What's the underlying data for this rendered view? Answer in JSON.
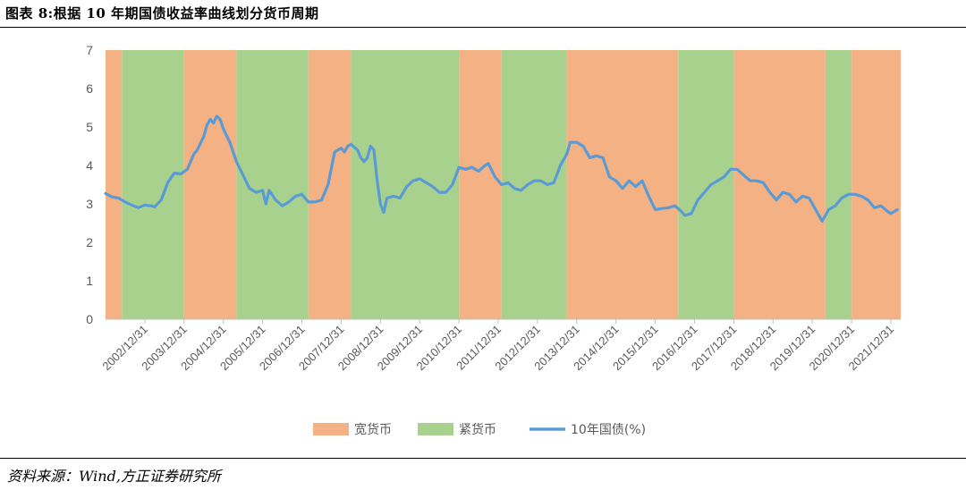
{
  "title": "图表 8:根据 10 年期国债收益率曲线划分货币周期",
  "source": "资料来源：Wind,方正证券研究所",
  "colors": {
    "loose": "#F4B183",
    "tight": "#A9D18E",
    "line": "#5B9BD5",
    "axis": "#595959",
    "axisline": "#BFBFBF"
  },
  "chart_data": {
    "type": "line",
    "title": "",
    "xlabel": "",
    "ylabel": "",
    "ylim": [
      0,
      7
    ],
    "yticks": [
      0,
      1,
      2,
      3,
      4,
      5,
      6,
      7
    ],
    "xlim": [
      "2002-01-01",
      "2022-04-01"
    ],
    "xtick_labels": [
      "2002/12/31",
      "2003/12/31",
      "2004/12/31",
      "2005/12/31",
      "2006/12/31",
      "2007/12/31",
      "2008/12/31",
      "2009/12/31",
      "2010/12/31",
      "2011/12/31",
      "2012/12/31",
      "2013/12/31",
      "2014/12/31",
      "2015/12/31",
      "2016/12/31",
      "2017/12/31",
      "2018/12/31",
      "2019/12/31",
      "2020/12/31",
      "2021/12/31"
    ],
    "legend": [
      "宽货币",
      "紧货币",
      "10年国债(%)"
    ],
    "legend_position": "bottom",
    "regimes": [
      {
        "type": "宽货币",
        "start": "2002-01-01",
        "end": "2002-06-01"
      },
      {
        "type": "紧货币",
        "start": "2002-06-01",
        "end": "2004-01-01"
      },
      {
        "type": "宽货币",
        "start": "2004-01-01",
        "end": "2005-05-01"
      },
      {
        "type": "紧货币",
        "start": "2005-05-01",
        "end": "2007-03-01"
      },
      {
        "type": "宽货币",
        "start": "2007-03-01",
        "end": "2008-04-01"
      },
      {
        "type": "紧货币",
        "start": "2008-04-01",
        "end": "2011-01-01"
      },
      {
        "type": "宽货币",
        "start": "2011-01-01",
        "end": "2012-02-01"
      },
      {
        "type": "紧货币",
        "start": "2012-02-01",
        "end": "2013-10-01"
      },
      {
        "type": "宽货币",
        "start": "2013-10-01",
        "end": "2016-08-01"
      },
      {
        "type": "紧货币",
        "start": "2016-08-01",
        "end": "2018-01-01"
      },
      {
        "type": "宽货币",
        "start": "2018-01-01",
        "end": "2020-05-01"
      },
      {
        "type": "紧货币",
        "start": "2020-05-01",
        "end": "2021-01-01"
      },
      {
        "type": "宽货币",
        "start": "2021-01-01",
        "end": "2022-04-01"
      }
    ],
    "series": [
      {
        "name": "10年国债(%)",
        "points": [
          [
            "2002-01-01",
            3.27
          ],
          [
            "2002-03-01",
            3.18
          ],
          [
            "2002-05-01",
            3.15
          ],
          [
            "2002-07-01",
            3.05
          ],
          [
            "2002-09-01",
            2.97
          ],
          [
            "2002-11-01",
            2.9
          ],
          [
            "2003-01-01",
            2.97
          ],
          [
            "2003-03-01",
            2.95
          ],
          [
            "2003-04-01",
            2.92
          ],
          [
            "2003-06-01",
            3.1
          ],
          [
            "2003-08-01",
            3.55
          ],
          [
            "2003-10-01",
            3.8
          ],
          [
            "2003-12-01",
            3.78
          ],
          [
            "2004-02-01",
            3.9
          ],
          [
            "2004-04-01",
            4.3
          ],
          [
            "2004-05-01",
            4.4
          ],
          [
            "2004-07-01",
            4.75
          ],
          [
            "2004-08-01",
            5.05
          ],
          [
            "2004-09-01",
            5.2
          ],
          [
            "2004-10-01",
            5.1
          ],
          [
            "2004-11-01",
            5.28
          ],
          [
            "2004-12-01",
            5.2
          ],
          [
            "2005-01-01",
            4.95
          ],
          [
            "2005-03-01",
            4.6
          ],
          [
            "2005-05-01",
            4.1
          ],
          [
            "2005-07-01",
            3.75
          ],
          [
            "2005-09-01",
            3.4
          ],
          [
            "2005-11-01",
            3.3
          ],
          [
            "2006-01-01",
            3.35
          ],
          [
            "2006-02-01",
            3.0
          ],
          [
            "2006-03-01",
            3.35
          ],
          [
            "2006-05-01",
            3.1
          ],
          [
            "2006-07-01",
            2.95
          ],
          [
            "2006-09-01",
            3.05
          ],
          [
            "2006-11-01",
            3.2
          ],
          [
            "2007-01-01",
            3.25
          ],
          [
            "2007-03-01",
            3.05
          ],
          [
            "2007-05-01",
            3.05
          ],
          [
            "2007-07-01",
            3.1
          ],
          [
            "2007-09-01",
            3.5
          ],
          [
            "2007-11-01",
            4.35
          ],
          [
            "2008-01-01",
            4.45
          ],
          [
            "2008-02-01",
            4.35
          ],
          [
            "2008-03-01",
            4.5
          ],
          [
            "2008-04-01",
            4.55
          ],
          [
            "2008-06-01",
            4.4
          ],
          [
            "2008-07-01",
            4.2
          ],
          [
            "2008-08-01",
            4.1
          ],
          [
            "2008-09-01",
            4.2
          ],
          [
            "2008-10-01",
            4.5
          ],
          [
            "2008-11-01",
            4.4
          ],
          [
            "2008-12-01",
            3.6
          ],
          [
            "2009-01-01",
            3.0
          ],
          [
            "2009-02-01",
            2.78
          ],
          [
            "2009-03-01",
            3.15
          ],
          [
            "2009-05-01",
            3.2
          ],
          [
            "2009-07-01",
            3.15
          ],
          [
            "2009-09-01",
            3.45
          ],
          [
            "2009-11-01",
            3.6
          ],
          [
            "2010-01-01",
            3.65
          ],
          [
            "2010-03-01",
            3.55
          ],
          [
            "2010-05-01",
            3.45
          ],
          [
            "2010-07-01",
            3.3
          ],
          [
            "2010-09-01",
            3.3
          ],
          [
            "2010-11-01",
            3.5
          ],
          [
            "2011-01-01",
            3.95
          ],
          [
            "2011-03-01",
            3.9
          ],
          [
            "2011-05-01",
            3.95
          ],
          [
            "2011-07-01",
            3.85
          ],
          [
            "2011-09-01",
            4.0
          ],
          [
            "2011-10-01",
            4.05
          ],
          [
            "2011-12-01",
            3.7
          ],
          [
            "2012-02-01",
            3.5
          ],
          [
            "2012-04-01",
            3.55
          ],
          [
            "2012-06-01",
            3.4
          ],
          [
            "2012-08-01",
            3.35
          ],
          [
            "2012-10-01",
            3.5
          ],
          [
            "2012-12-01",
            3.6
          ],
          [
            "2013-02-01",
            3.6
          ],
          [
            "2013-04-01",
            3.5
          ],
          [
            "2013-06-01",
            3.55
          ],
          [
            "2013-08-01",
            4.0
          ],
          [
            "2013-10-01",
            4.3
          ],
          [
            "2013-11-01",
            4.6
          ],
          [
            "2014-01-01",
            4.6
          ],
          [
            "2014-03-01",
            4.5
          ],
          [
            "2014-05-01",
            4.2
          ],
          [
            "2014-07-01",
            4.25
          ],
          [
            "2014-09-01",
            4.2
          ],
          [
            "2014-11-01",
            3.7
          ],
          [
            "2015-01-01",
            3.6
          ],
          [
            "2015-03-01",
            3.4
          ],
          [
            "2015-05-01",
            3.6
          ],
          [
            "2015-07-01",
            3.45
          ],
          [
            "2015-09-01",
            3.6
          ],
          [
            "2015-11-01",
            3.2
          ],
          [
            "2016-01-01",
            2.85
          ],
          [
            "2016-03-01",
            2.88
          ],
          [
            "2016-05-01",
            2.9
          ],
          [
            "2016-07-01",
            2.95
          ],
          [
            "2016-09-01",
            2.8
          ],
          [
            "2016-10-01",
            2.7
          ],
          [
            "2016-12-01",
            2.75
          ],
          [
            "2017-02-01",
            3.1
          ],
          [
            "2017-04-01",
            3.3
          ],
          [
            "2017-06-01",
            3.5
          ],
          [
            "2017-08-01",
            3.6
          ],
          [
            "2017-10-01",
            3.7
          ],
          [
            "2017-12-01",
            3.9
          ],
          [
            "2018-02-01",
            3.9
          ],
          [
            "2018-04-01",
            3.75
          ],
          [
            "2018-06-01",
            3.6
          ],
          [
            "2018-08-01",
            3.6
          ],
          [
            "2018-10-01",
            3.55
          ],
          [
            "2018-12-01",
            3.3
          ],
          [
            "2019-02-01",
            3.1
          ],
          [
            "2019-04-01",
            3.3
          ],
          [
            "2019-06-01",
            3.25
          ],
          [
            "2019-08-01",
            3.05
          ],
          [
            "2019-10-01",
            3.2
          ],
          [
            "2019-12-01",
            3.15
          ],
          [
            "2020-02-01",
            2.85
          ],
          [
            "2020-04-01",
            2.55
          ],
          [
            "2020-06-01",
            2.85
          ],
          [
            "2020-08-01",
            2.95
          ],
          [
            "2020-10-01",
            3.15
          ],
          [
            "2020-12-01",
            3.25
          ],
          [
            "2021-02-01",
            3.25
          ],
          [
            "2021-04-01",
            3.2
          ],
          [
            "2021-06-01",
            3.1
          ],
          [
            "2021-08-01",
            2.9
          ],
          [
            "2021-10-01",
            2.95
          ],
          [
            "2021-12-01",
            2.8
          ],
          [
            "2022-01-01",
            2.75
          ],
          [
            "2022-02-01",
            2.8
          ],
          [
            "2022-03-01",
            2.85
          ]
        ]
      }
    ]
  }
}
